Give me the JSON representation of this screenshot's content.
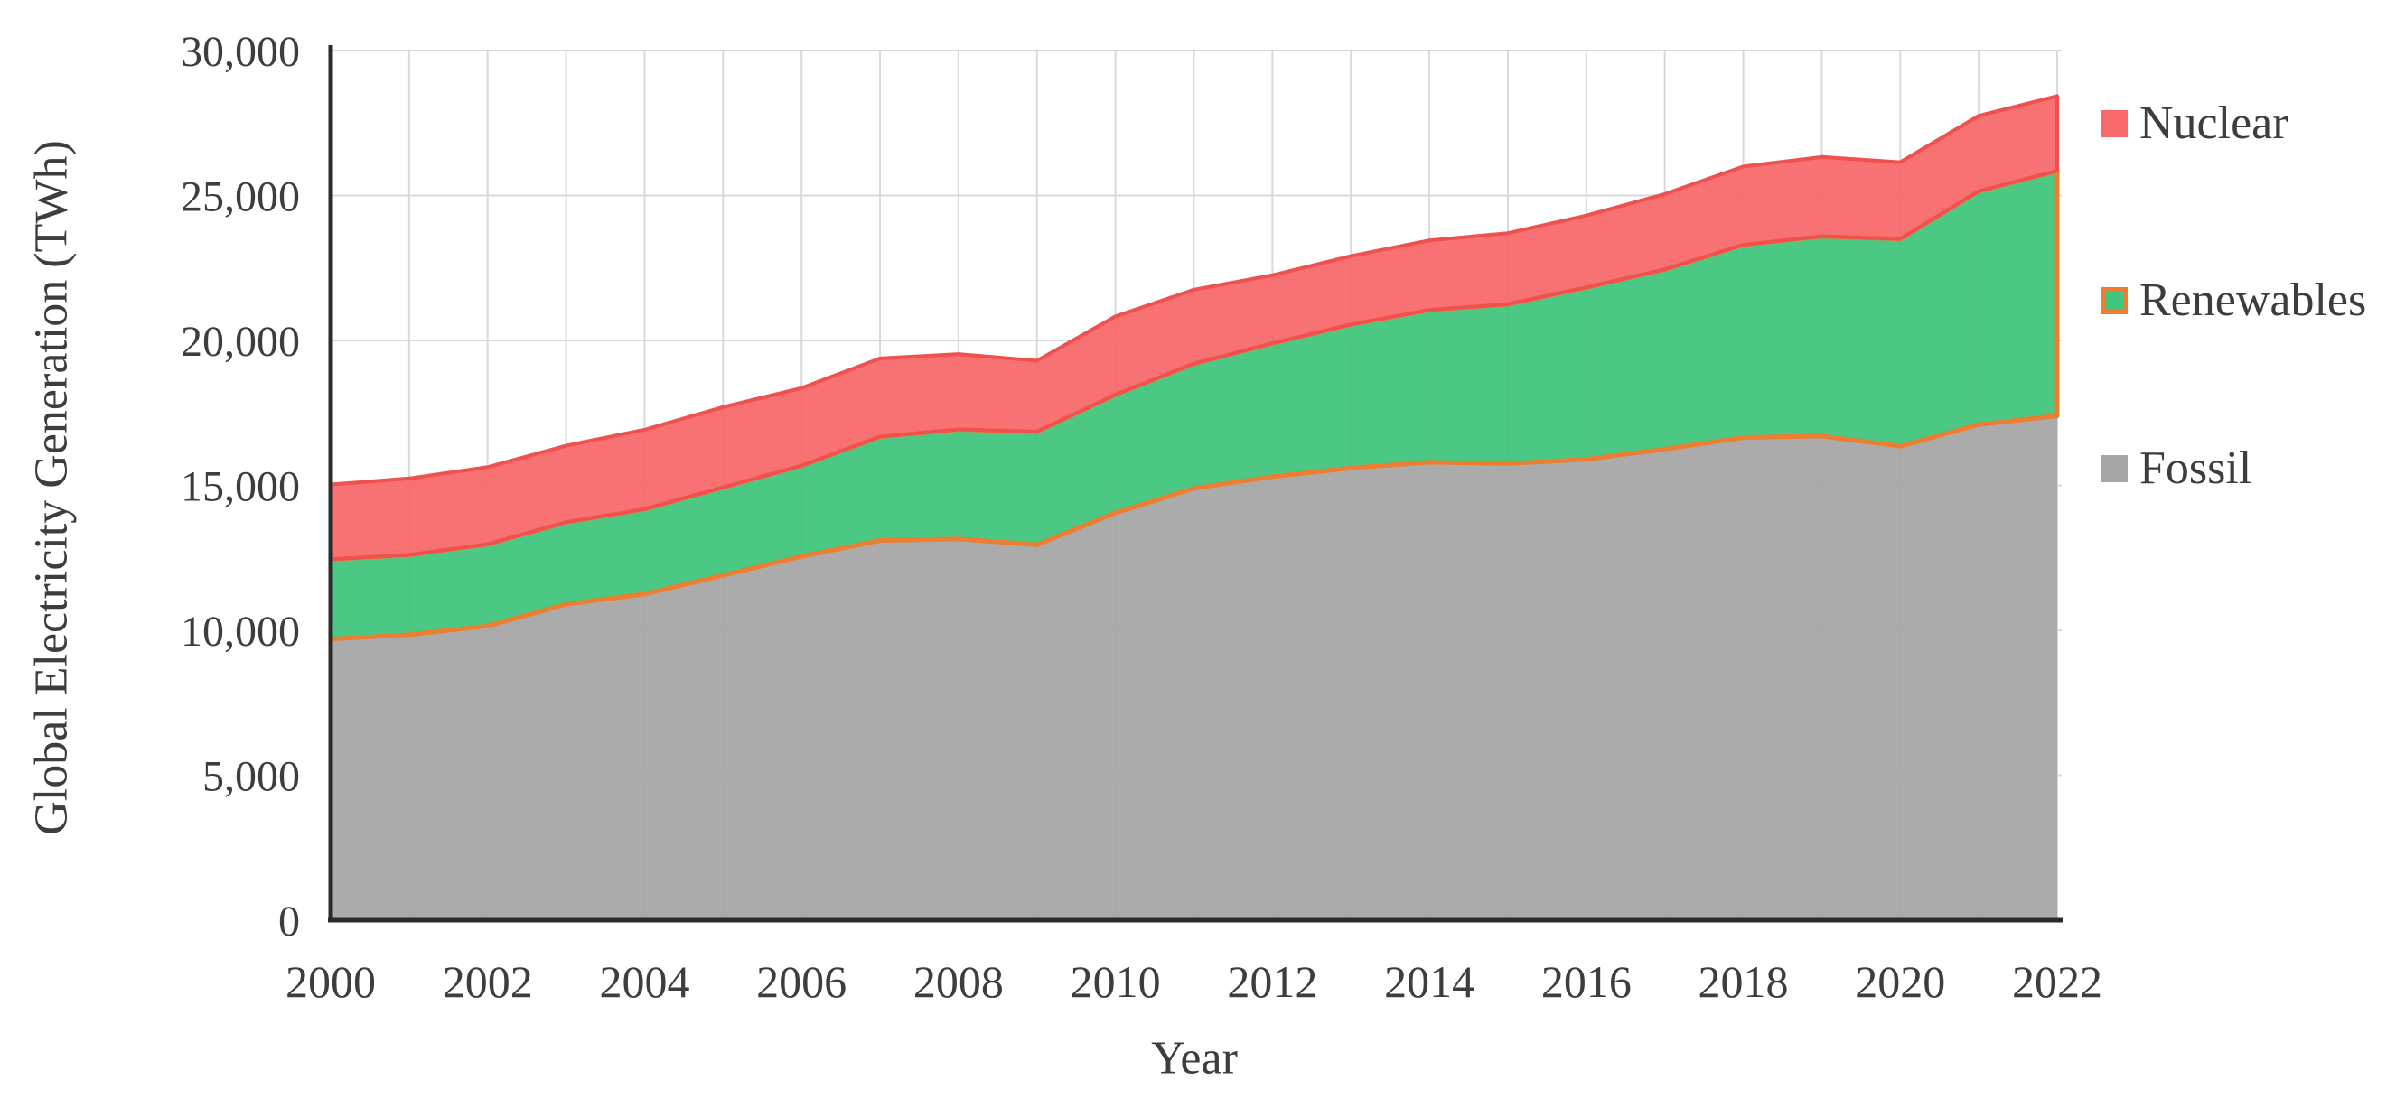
{
  "figure": {
    "kind": "stacked-area-chart",
    "background": "#ffffff"
  },
  "y_axis": {
    "title": "Global Electricity Generation (TWh)",
    "min": 0,
    "max": 30000,
    "tick_step": 5000,
    "tick_labels": [
      "0",
      "5,000",
      "10,000",
      "15,000",
      "20,000",
      "25,000",
      "30,000"
    ]
  },
  "x_axis": {
    "title": "Year",
    "tick_labels": [
      "2000",
      "2002",
      "2004",
      "2006",
      "2008",
      "2010",
      "2012",
      "2014",
      "2016",
      "2018",
      "2020",
      "2022"
    ]
  },
  "legend": {
    "items": [
      {
        "label": "Nuclear",
        "color": "#F8696B",
        "border": "#F8696B"
      },
      {
        "label": "Renewables",
        "color": "#41C57D",
        "border": "#ED7D31"
      },
      {
        "label": "Fossil",
        "color": "#A6A6A6",
        "border": "#A6A6A6"
      }
    ]
  },
  "colors": {
    "axis_line": "#2B2B2B",
    "gridline": "#D9D9D9",
    "text": "#3D3D3D"
  },
  "chart_data": {
    "type": "area",
    "stacked": true,
    "title": "",
    "xlabel": "Year",
    "ylabel": "Global Electricity Generation (TWh)",
    "x": [
      2000,
      2001,
      2002,
      2003,
      2004,
      2005,
      2006,
      2007,
      2008,
      2009,
      2010,
      2011,
      2012,
      2013,
      2014,
      2015,
      2016,
      2017,
      2018,
      2019,
      2020,
      2021,
      2022
    ],
    "series": [
      {
        "name": "Fossil",
        "fill": "#A6A6A6",
        "stroke": "none",
        "stroke_width": 0,
        "values": [
          9700,
          9850,
          10150,
          10900,
          11250,
          11900,
          12550,
          13100,
          13150,
          12950,
          14050,
          14900,
          15300,
          15600,
          15800,
          15750,
          15900,
          16250,
          16650,
          16700,
          16350,
          17100,
          17400
        ]
      },
      {
        "name": "Renewables",
        "fill": "#41C57D",
        "stroke": "#ED7D31",
        "stroke_width": 5,
        "values": [
          2750,
          2750,
          2820,
          2830,
          2930,
          3030,
          3130,
          3580,
          3780,
          3900,
          4080,
          4300,
          4600,
          4950,
          5250,
          5500,
          5930,
          6200,
          6650,
          6890,
          7150,
          8050,
          8450
        ]
      },
      {
        "name": "Nuclear",
        "fill": "#F8696B",
        "stroke": "#F0504E",
        "stroke_width": 4,
        "values": [
          2580,
          2640,
          2660,
          2640,
          2740,
          2770,
          2680,
          2700,
          2600,
          2450,
          2700,
          2550,
          2350,
          2360,
          2400,
          2450,
          2480,
          2600,
          2700,
          2740,
          2650,
          2600,
          2580
        ]
      }
    ],
    "ylim": [
      0,
      30000
    ],
    "grid": {
      "horizontal_every": 5000,
      "vertical_every_years": 1
    },
    "legend_position": "right"
  }
}
